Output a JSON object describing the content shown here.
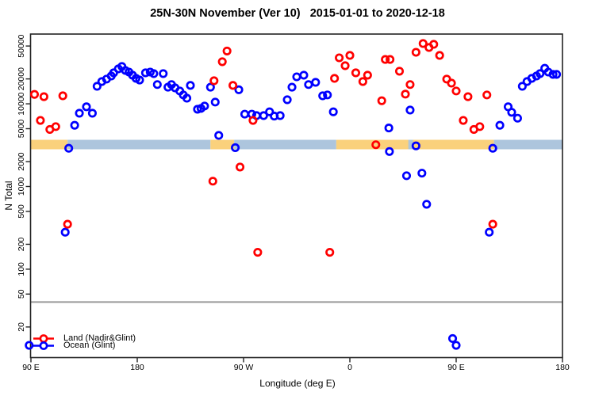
{
  "title": "25N-30N November (Ver 10)   2015-01-01 to 2020-12-18",
  "axes": {
    "x": {
      "label": "Longitude (deg E)",
      "ticks": [
        {
          "lon": 90,
          "label": "90 E"
        },
        {
          "lon": 180,
          "label": "180"
        },
        {
          "lon": 270,
          "label": "90 W"
        },
        {
          "lon": 360,
          "label": "0"
        },
        {
          "lon": 450,
          "label": "90 E"
        },
        {
          "lon": 540,
          "label": "180"
        }
      ]
    },
    "y": {
      "label": "N Total",
      "ticks": [
        {
          "value": 50000,
          "label": "50000"
        },
        {
          "value": 20000,
          "label": "20000"
        },
        {
          "value": 10000,
          "label": "10000"
        },
        {
          "value": 5000,
          "label": "5000"
        },
        {
          "value": 2000,
          "label": "2000"
        },
        {
          "value": 1000,
          "label": "1000"
        },
        {
          "value": 500,
          "label": "500"
        },
        {
          "value": 200,
          "label": "200"
        },
        {
          "value": 100,
          "label": "100"
        },
        {
          "value": 50,
          "label": "50"
        },
        {
          "value": 20,
          "label": "20"
        }
      ]
    }
  },
  "legend": [
    {
      "name": "land",
      "label": "Land (Nadir&Glint)",
      "color": "#ff0000"
    },
    {
      "name": "ocean",
      "label": "Ocean (Glint)",
      "color": "#0000ff"
    }
  ],
  "colors": {
    "land_point": "#ff0000",
    "ocean_point": "#0000ff",
    "band_land": "#FAD17C",
    "band_ocean": "#ADC5DD",
    "threshold_line": "#999999",
    "frame": "#222222",
    "text": "#000000"
  },
  "chart_data": {
    "type": "scatter",
    "title": "25N-30N November (Ver 10)   2015-01-01 to 2020-12-18",
    "xlabel": "Longitude (deg E)",
    "ylabel": "N Total",
    "y_scale": "log10",
    "xlim": [
      90,
      540
    ],
    "ylim": [
      9,
      70000
    ],
    "x_note": "longitude in deg E, wrapping 90E through 180, 90W, 0, 90E to 180",
    "threshold_n": 40,
    "surface_band": {
      "n_range": [
        2820,
        3670
      ],
      "segments": [
        {
          "from": 90,
          "to": 121,
          "type": "land"
        },
        {
          "from": 121,
          "to": 242,
          "type": "ocean"
        },
        {
          "from": 242,
          "to": 262,
          "type": "land"
        },
        {
          "from": 262,
          "to": 348.5,
          "type": "ocean"
        },
        {
          "from": 348.5,
          "to": 482,
          "type": "land"
        },
        {
          "from": 409.5,
          "to": 413.5,
          "type": "ocean"
        },
        {
          "from": 482,
          "to": 540,
          "type": "ocean"
        }
      ]
    },
    "series": [
      {
        "name": "Land (Nadir&Glint)",
        "color": "#ff0000",
        "points": [
          [
            93,
            13000
          ],
          [
            101,
            12200
          ],
          [
            117,
            12500
          ],
          [
            98,
            6300
          ],
          [
            106,
            4900
          ],
          [
            111,
            5300
          ],
          [
            121,
            350
          ],
          [
            244,
            1160
          ],
          [
            245,
            19000
          ],
          [
            252,
            32300
          ],
          [
            256,
            43500
          ],
          [
            261,
            16700
          ],
          [
            267,
            1720
          ],
          [
            278,
            6300
          ],
          [
            282,
            160
          ],
          [
            343,
            160
          ],
          [
            347,
            20300
          ],
          [
            351,
            36000
          ],
          [
            356,
            28900
          ],
          [
            360,
            38500
          ],
          [
            365,
            23700
          ],
          [
            371,
            18600
          ],
          [
            375,
            22200
          ],
          [
            382,
            3200
          ],
          [
            387,
            10900
          ],
          [
            390,
            34400
          ],
          [
            394,
            34400
          ],
          [
            402,
            24800
          ],
          [
            407,
            13100
          ],
          [
            411,
            17100
          ],
          [
            416,
            42000
          ],
          [
            422,
            53600
          ],
          [
            427,
            48000
          ],
          [
            431,
            52400
          ],
          [
            436,
            38500
          ],
          [
            442,
            19900
          ],
          [
            446,
            17800
          ],
          [
            450,
            14300
          ],
          [
            456,
            6300
          ],
          [
            460,
            12200
          ],
          [
            465,
            4900
          ],
          [
            470,
            5300
          ],
          [
            476,
            12800
          ],
          [
            481,
            350
          ]
        ]
      },
      {
        "name": "Ocean (Glint)",
        "color": "#0000ff",
        "points": [
          [
            88.5,
            12
          ],
          [
            119,
            280
          ],
          [
            122,
            2900
          ],
          [
            127,
            5500
          ],
          [
            131,
            7700
          ],
          [
            137,
            9200
          ],
          [
            142,
            7700
          ],
          [
            146,
            16300
          ],
          [
            150,
            18600
          ],
          [
            154,
            19900
          ],
          [
            158,
            21700
          ],
          [
            160,
            23700
          ],
          [
            164,
            26500
          ],
          [
            167,
            28300
          ],
          [
            170,
            25300
          ],
          [
            173,
            24200
          ],
          [
            176,
            22200
          ],
          [
            179,
            20300
          ],
          [
            182,
            19400
          ],
          [
            187,
            23700
          ],
          [
            191,
            24200
          ],
          [
            194,
            23200
          ],
          [
            197,
            17100
          ],
          [
            202,
            23200
          ],
          [
            206,
            15900
          ],
          [
            209,
            17100
          ],
          [
            212,
            15600
          ],
          [
            216,
            14300
          ],
          [
            219,
            12800
          ],
          [
            222,
            11700
          ],
          [
            225,
            16700
          ],
          [
            231,
            8600
          ],
          [
            234,
            8800
          ],
          [
            237,
            9400
          ],
          [
            242,
            15900
          ],
          [
            246,
            10500
          ],
          [
            249,
            4150
          ],
          [
            263,
            2950
          ],
          [
            266,
            14800
          ],
          [
            271,
            7500
          ],
          [
            277,
            7500
          ],
          [
            281,
            7200
          ],
          [
            287,
            7200
          ],
          [
            292,
            8000
          ],
          [
            296,
            7100
          ],
          [
            301,
            7200
          ],
          [
            307,
            11200
          ],
          [
            311,
            15900
          ],
          [
            315,
            21200
          ],
          [
            321,
            22200
          ],
          [
            325,
            17100
          ],
          [
            331,
            18200
          ],
          [
            337,
            12500
          ],
          [
            341,
            12800
          ],
          [
            346,
            8000
          ],
          [
            393,
            5100
          ],
          [
            393.5,
            2650
          ],
          [
            408,
            1350
          ],
          [
            411,
            8400
          ],
          [
            416,
            3100
          ],
          [
            421,
            1450
          ],
          [
            425,
            610
          ],
          [
            447,
            14.5
          ],
          [
            450,
            12
          ],
          [
            478,
            280
          ],
          [
            481,
            2900
          ],
          [
            487,
            5500
          ],
          [
            494,
            9200
          ],
          [
            497,
            7900
          ],
          [
            502,
            6700
          ],
          [
            506,
            16300
          ],
          [
            510,
            18600
          ],
          [
            514,
            20300
          ],
          [
            518,
            21700
          ],
          [
            521,
            23200
          ],
          [
            525,
            26900
          ],
          [
            528,
            24200
          ],
          [
            532,
            22700
          ],
          [
            535,
            22700
          ]
        ]
      }
    ]
  }
}
